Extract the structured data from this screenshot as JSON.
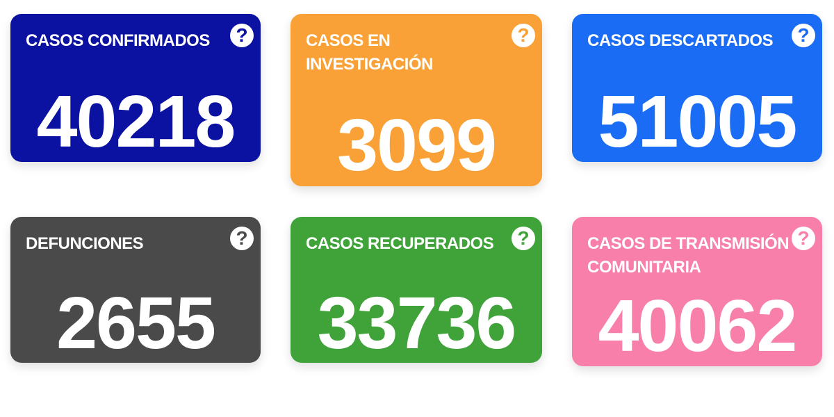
{
  "cards": [
    {
      "label": "CASOS CONFIRMADOS",
      "value": "40218",
      "color": "#0b11a0",
      "icon": "question-circle-icon"
    },
    {
      "label": "CASOS EN INVESTIGACIÓN",
      "value": "3099",
      "color": "#f9a136",
      "icon": "question-circle-icon"
    },
    {
      "label": "CASOS DESCARTADOS",
      "value": "51005",
      "color": "#1b6cf5",
      "icon": "question-circle-icon"
    },
    {
      "label": "DEFUNCIONES",
      "value": "2655",
      "color": "#4a4a4a",
      "icon": "question-circle-icon"
    },
    {
      "label": "CASOS RECUPERADOS",
      "value": "33736",
      "color": "#3fa33a",
      "icon": "question-circle-icon"
    },
    {
      "label": "CASOS DE TRANSMISIÓN COMUNITARIA",
      "value": "40062",
      "color": "#f97fab",
      "icon": "question-circle-icon"
    }
  ],
  "help_glyph": "?"
}
